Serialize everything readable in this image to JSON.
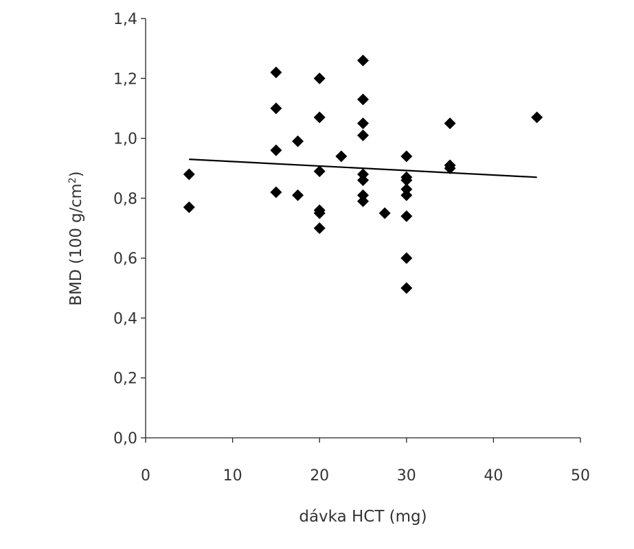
{
  "chart_data": {
    "type": "scatter",
    "title": "",
    "xlabel": "dávka HCT (mg)",
    "ylabel_main": "BMD (100 g/cm",
    "ylabel_sup": "2",
    "ylabel_end": ")",
    "xlim": [
      0,
      50
    ],
    "ylim": [
      0,
      1.4
    ],
    "xticks": [
      0,
      10,
      20,
      30,
      40,
      50
    ],
    "xtick_labels": [
      "0",
      "10",
      "20",
      "30",
      "40",
      "50"
    ],
    "yticks": [
      0,
      0.2,
      0.4,
      0.6,
      0.8,
      1.0,
      1.2,
      1.4
    ],
    "ytick_labels": [
      "0,0",
      "0,2",
      "0,4",
      "0,6",
      "0,8",
      "1,0",
      "1,2",
      "1,4"
    ],
    "grid": false,
    "legend": "none",
    "marker": "diamond",
    "marker_color": "#000000",
    "points": [
      {
        "x": 5,
        "y": 0.88
      },
      {
        "x": 5,
        "y": 0.77
      },
      {
        "x": 15,
        "y": 1.22
      },
      {
        "x": 15,
        "y": 1.1
      },
      {
        "x": 15,
        "y": 0.96
      },
      {
        "x": 15,
        "y": 0.82
      },
      {
        "x": 17.5,
        "y": 0.99
      },
      {
        "x": 17.5,
        "y": 0.81
      },
      {
        "x": 20,
        "y": 1.2
      },
      {
        "x": 20,
        "y": 1.07
      },
      {
        "x": 20,
        "y": 0.89
      },
      {
        "x": 20,
        "y": 0.76
      },
      {
        "x": 20,
        "y": 0.75
      },
      {
        "x": 20,
        "y": 0.7
      },
      {
        "x": 22.5,
        "y": 0.94
      },
      {
        "x": 25,
        "y": 1.26
      },
      {
        "x": 25,
        "y": 1.13
      },
      {
        "x": 25,
        "y": 1.05
      },
      {
        "x": 25,
        "y": 1.01
      },
      {
        "x": 25,
        "y": 0.88
      },
      {
        "x": 25,
        "y": 0.86
      },
      {
        "x": 25,
        "y": 0.81
      },
      {
        "x": 25,
        "y": 0.79
      },
      {
        "x": 27.5,
        "y": 0.75
      },
      {
        "x": 30,
        "y": 0.94
      },
      {
        "x": 30,
        "y": 0.87
      },
      {
        "x": 30,
        "y": 0.86
      },
      {
        "x": 30,
        "y": 0.83
      },
      {
        "x": 30,
        "y": 0.81
      },
      {
        "x": 30,
        "y": 0.74
      },
      {
        "x": 30,
        "y": 0.6
      },
      {
        "x": 30,
        "y": 0.5
      },
      {
        "x": 35,
        "y": 1.05
      },
      {
        "x": 35,
        "y": 0.91
      },
      {
        "x": 35,
        "y": 0.9
      },
      {
        "x": 45,
        "y": 1.07
      }
    ],
    "trendline": {
      "x": [
        5,
        45
      ],
      "y": [
        0.93,
        0.87
      ]
    }
  }
}
